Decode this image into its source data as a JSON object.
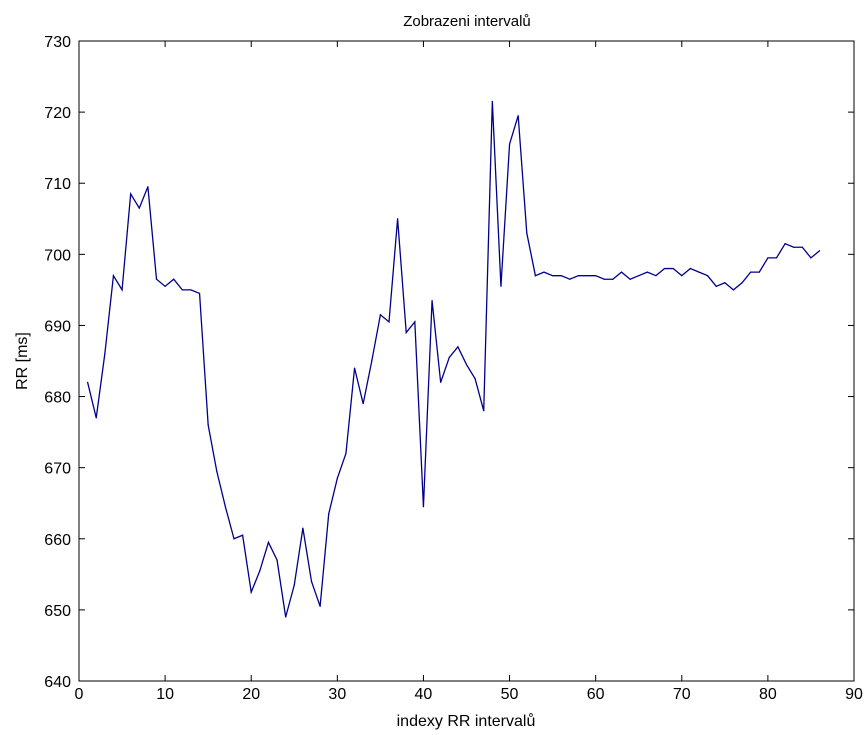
{
  "chart_data": {
    "type": "line",
    "title": "Zobrazeni intervalů",
    "xlabel": "indexy RR intervalů",
    "ylabel": "RR [ms]",
    "xlim": [
      0,
      90
    ],
    "ylim": [
      640,
      730
    ],
    "xticks": [
      0,
      10,
      20,
      30,
      40,
      50,
      60,
      70,
      80,
      90
    ],
    "yticks": [
      640,
      650,
      660,
      670,
      680,
      690,
      700,
      710,
      720,
      730
    ],
    "grid": false,
    "series_color": "#00008b",
    "series": [
      {
        "x": [
          1,
          2,
          3,
          4,
          5,
          6,
          7,
          8,
          9,
          10,
          11,
          12,
          13,
          14,
          15,
          16,
          17,
          18,
          19,
          20,
          21,
          22,
          23,
          24,
          25,
          26,
          27,
          28,
          29,
          30,
          31,
          32,
          33,
          34,
          35,
          36,
          37,
          38,
          39,
          40,
          41,
          42,
          43,
          44,
          45,
          46,
          47,
          48,
          49,
          50,
          51,
          52,
          53,
          54,
          55,
          56,
          57,
          58,
          59,
          60,
          61,
          62,
          63,
          64,
          65,
          66,
          67,
          68,
          69,
          70,
          71,
          72,
          73,
          74,
          75,
          76,
          77,
          78,
          79,
          80,
          81,
          82,
          83,
          84,
          85,
          86
        ],
        "values": [
          682,
          677,
          686,
          697,
          695,
          708.5,
          706.5,
          709.5,
          696.5,
          695.5,
          696.5,
          695,
          695,
          694.5,
          676,
          669.5,
          664.5,
          660,
          660.5,
          652.5,
          655.5,
          659.5,
          657,
          649,
          653.5,
          661.5,
          654,
          650.5,
          663.5,
          668.5,
          672,
          684,
          679,
          685,
          691.5,
          690.5,
          705,
          689,
          690.5,
          664.5,
          693.5,
          682,
          685.5,
          687,
          684.5,
          682.5,
          678,
          721.5,
          695.5,
          715.5,
          719.5,
          703,
          697,
          697.5,
          697,
          697,
          696.5,
          697,
          697,
          697,
          696.5,
          696.5,
          697.5,
          696.5,
          697,
          697.5,
          697,
          698,
          698,
          697,
          698,
          697.5,
          697,
          695.5,
          696,
          695,
          696,
          697.5,
          697.5,
          699.5,
          699.5,
          701.5,
          701,
          701,
          699.5,
          700.5
        ]
      }
    ]
  }
}
